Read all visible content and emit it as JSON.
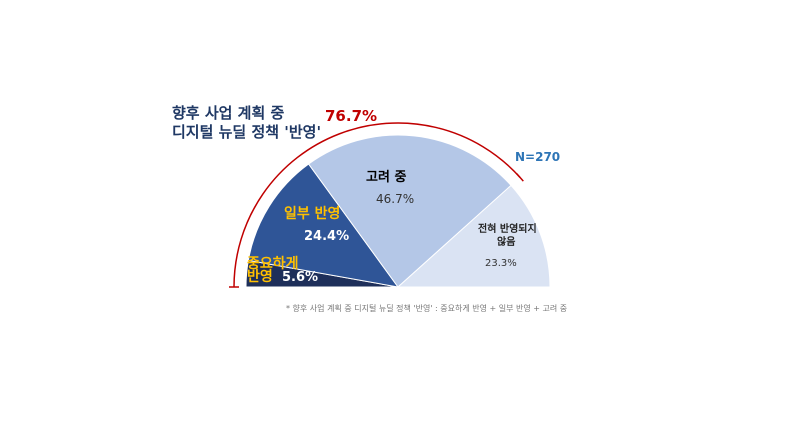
{
  "title_line1": "향후 사업 계획 중",
  "title_line2": "디지털 뉴딜 정책 '반영'",
  "bracket_total": "76.7%",
  "sample_size": "N=270",
  "footnote": "* 향후 사업 계획 중 디지털 뉴딜 정책 '반영' : 중요하게 반영 + 일부 반영 + 고려 중",
  "colors": {
    "important": "#1e2f5a",
    "partial": "#2f5597",
    "considering": "#b4c7e7",
    "not_reflected": "#dae3f3",
    "bracket": "#c00000"
  },
  "chart_data": {
    "type": "pie",
    "shape": "semicircle",
    "slices": [
      {
        "name": "중요하게 반영",
        "name_line1": "중요하게",
        "name_line2": "반영",
        "value": 5.6,
        "value_label": "5.6%"
      },
      {
        "name": "일부 반영",
        "value": 24.4,
        "value_label": "24.4%"
      },
      {
        "name": "고려 중",
        "value": 46.7,
        "value_label": "46.7%"
      },
      {
        "name": "전혀 반영되지 않음",
        "name_line1": "전혀 반영되지",
        "name_line2": "않음",
        "value": 23.3,
        "value_label": "23.3%"
      }
    ]
  }
}
